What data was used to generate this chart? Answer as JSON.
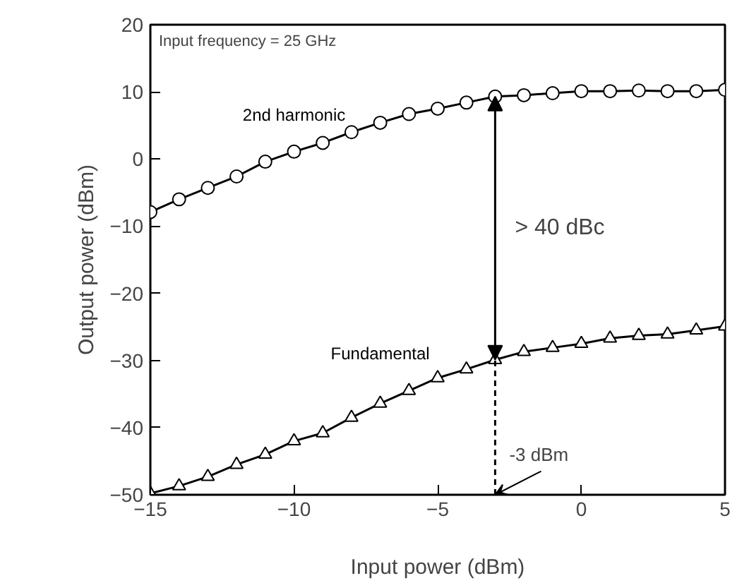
{
  "chart_data": {
    "type": "line",
    "xlabel": "Input power (dBm)",
    "ylabel": "Output power (dBm)",
    "x": [
      -15,
      -14,
      -13,
      -12,
      -11,
      -10,
      -9,
      -8,
      -7,
      -6,
      -5,
      -4,
      -3,
      -2,
      -1,
      0,
      1,
      2,
      3,
      4,
      5
    ],
    "series": [
      {
        "name": "2nd harmonic",
        "color": "#000000",
        "marker": "circle",
        "values": [
          -7.9,
          -6.0,
          -4.3,
          -2.6,
          -0.4,
          1.1,
          2.4,
          4.0,
          5.4,
          6.7,
          7.5,
          8.4,
          9.3,
          9.5,
          9.8,
          10.1,
          10.1,
          10.2,
          10.1,
          10.1,
          10.3
        ]
      },
      {
        "name": "Fundamental",
        "color": "#000000",
        "marker": "triangle",
        "values": [
          -49.8,
          -48.7,
          -47.3,
          -45.5,
          -44.0,
          -42.0,
          -40.8,
          -38.5,
          -36.4,
          -34.5,
          -32.6,
          -31.3,
          -29.9,
          -28.7,
          -28.1,
          -27.5,
          -26.7,
          -26.3,
          -26.1,
          -25.5,
          -24.9
        ]
      }
    ],
    "xlim": [
      -15,
      5
    ],
    "ylim": [
      -50,
      20
    ],
    "xticks": [
      -15,
      -10,
      -5,
      0,
      5
    ],
    "yticks": [
      -50,
      -40,
      -30,
      -20,
      -10,
      0,
      10,
      20
    ],
    "grid": false,
    "line_style": "solid",
    "ref_lines": [
      {
        "axis": "x",
        "value": -3,
        "label": "-3 dBm",
        "line_style": "dashed",
        "color": "#000000"
      }
    ],
    "annotations": [
      "Input frequency = 25 GHz",
      "> 40 dBc"
    ]
  }
}
